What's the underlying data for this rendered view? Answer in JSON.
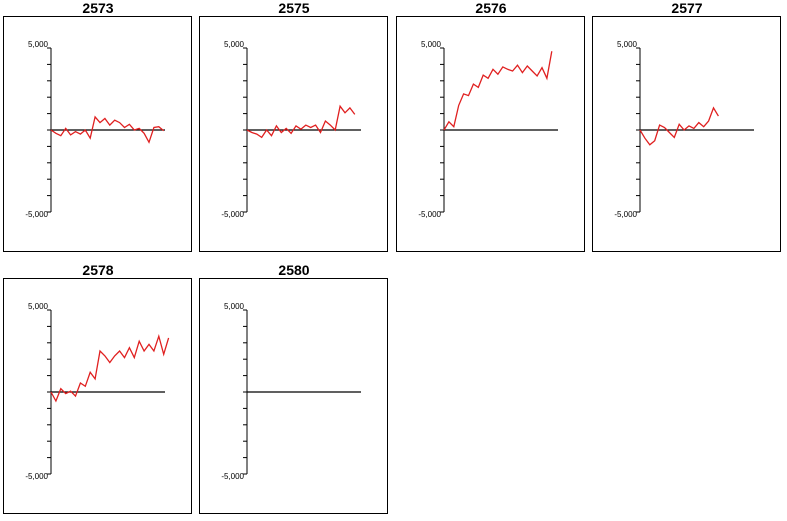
{
  "chart_data": [
    {
      "type": "line",
      "title": "2573",
      "ylim": [
        -5000,
        5000
      ],
      "yticks": [
        {
          "value": 5000,
          "label": "5,000"
        },
        {
          "value": -5000,
          "label": "-5,000"
        }
      ],
      "series": [
        {
          "color": "#e02020",
          "values": [
            0,
            -200,
            -350,
            100,
            -300,
            -100,
            -250,
            0,
            -500,
            800,
            450,
            700,
            300,
            600,
            450,
            150,
            350,
            0,
            100,
            -200,
            -750,
            150,
            200,
            -50
          ]
        }
      ]
    },
    {
      "type": "line",
      "title": "2575",
      "ylim": [
        -5000,
        5000
      ],
      "yticks": [
        {
          "value": 5000,
          "label": "5,000"
        },
        {
          "value": -5000,
          "label": "-5,000"
        }
      ],
      "series": [
        {
          "color": "#e02020",
          "values": [
            0,
            -150,
            -250,
            -450,
            0,
            -350,
            250,
            -150,
            100,
            -200,
            250,
            50,
            300,
            150,
            300,
            -150,
            550,
            300,
            0,
            1450,
            1050,
            1350,
            950
          ]
        }
      ]
    },
    {
      "type": "line",
      "title": "2576",
      "ylim": [
        -5000,
        5000
      ],
      "yticks": [
        {
          "value": 5000,
          "label": "5,000"
        },
        {
          "value": -5000,
          "label": "-5,000"
        }
      ],
      "series": [
        {
          "color": "#e02020",
          "values": [
            0,
            500,
            200,
            1500,
            2200,
            2100,
            2800,
            2600,
            3350,
            3150,
            3700,
            3400,
            3850,
            3700,
            3600,
            3950,
            3500,
            3900,
            3600,
            3300,
            3800,
            3150,
            4800
          ]
        }
      ]
    },
    {
      "type": "line",
      "title": "2577",
      "ylim": [
        -5000,
        5000
      ],
      "yticks": [
        {
          "value": 5000,
          "label": "5,000"
        },
        {
          "value": -5000,
          "label": "-5,000"
        }
      ],
      "series": [
        {
          "color": "#e02020",
          "values": [
            0,
            -500,
            -900,
            -650,
            300,
            150,
            -150,
            -450,
            350,
            0,
            250,
            100,
            450,
            200,
            550,
            1350,
            850
          ]
        }
      ]
    },
    {
      "type": "line",
      "title": "2578",
      "ylim": [
        -5000,
        5000
      ],
      "yticks": [
        {
          "value": 5000,
          "label": "5,000"
        },
        {
          "value": -5000,
          "label": "-5,000"
        }
      ],
      "series": [
        {
          "color": "#e02020",
          "values": [
            0,
            -550,
            200,
            -100,
            50,
            -250,
            550,
            350,
            1200,
            800,
            2500,
            2200,
            1800,
            2200,
            2500,
            2100,
            2700,
            2100,
            3100,
            2500,
            2900,
            2500,
            3400,
            2300,
            3300
          ]
        }
      ]
    },
    {
      "type": "line",
      "title": "2580",
      "ylim": [
        -5000,
        5000
      ],
      "yticks": [
        {
          "value": 5000,
          "label": "5,000"
        },
        {
          "value": -5000,
          "label": "-5,000"
        }
      ],
      "series": [
        {
          "color": "#e02020",
          "values": []
        }
      ]
    }
  ]
}
